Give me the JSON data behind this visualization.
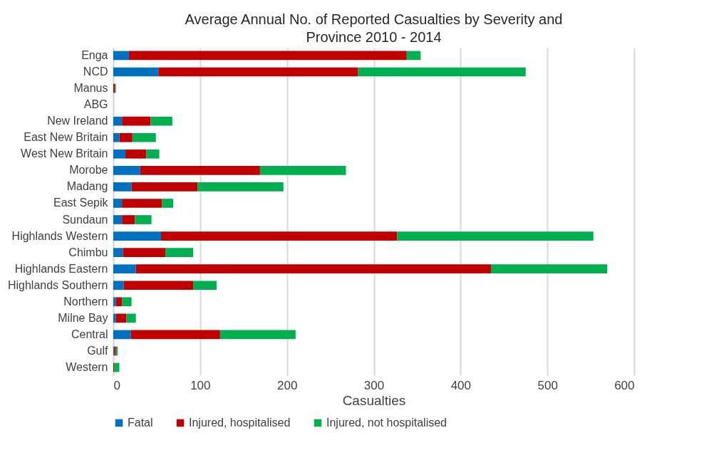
{
  "chart_data": {
    "type": "bar",
    "title": "Average Annual No. of Reported Casualties by Severity and Province 2010 - 2014",
    "xlabel": "Casualties",
    "categories": [
      "Enga",
      "NCD",
      "Manus",
      "ABG",
      "New Ireland",
      "East New Britain",
      "West New Britain",
      "Morobe",
      "Madang",
      "East Sepik",
      "Sundaun",
      "Highlands Western",
      "Chimbu",
      "Highlands Eastern",
      "Highlands Southern",
      "Northern",
      "Milne Bay",
      "Central",
      "Gulf",
      "Western"
    ],
    "series": [
      {
        "name": "Fatal",
        "color": "#0070c0",
        "values": [
          18,
          52,
          0,
          null,
          10,
          7,
          14,
          31,
          21,
          10,
          10,
          55,
          11,
          26,
          12,
          3,
          3,
          20,
          1,
          0
        ]
      },
      {
        "name": "Injured, hospitalised",
        "color": "#c00000",
        "values": [
          320,
          230,
          2,
          null,
          33,
          15,
          24,
          138,
          76,
          46,
          15,
          272,
          49,
          409,
          80,
          7,
          12,
          103,
          2,
          1
        ]
      },
      {
        "name": "Injured, not hospitalised",
        "color": "#00b050",
        "values": [
          16,
          193,
          1,
          null,
          25,
          27,
          15,
          99,
          99,
          13,
          19,
          226,
          32,
          134,
          27,
          11,
          11,
          87,
          2,
          6
        ]
      }
    ],
    "orientation": "horizontal",
    "stacked": true,
    "xlim": [
      0,
      600
    ],
    "xticks": [
      0,
      100,
      200,
      300,
      400,
      500,
      600
    ],
    "grid": "x",
    "legend": "bottom"
  }
}
